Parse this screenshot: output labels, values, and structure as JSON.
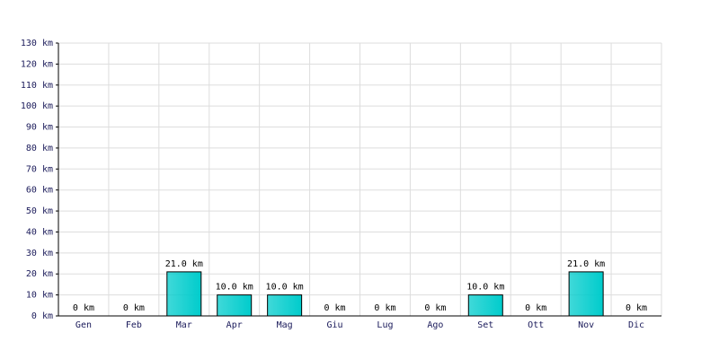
{
  "chart_data": {
    "type": "bar",
    "categories": [
      "Gen",
      "Feb",
      "Mar",
      "Apr",
      "Mag",
      "Giu",
      "Lug",
      "Ago",
      "Set",
      "Ott",
      "Nov",
      "Dic"
    ],
    "values": [
      0,
      0,
      21,
      10,
      10,
      0,
      0,
      0,
      10,
      0,
      21,
      0
    ],
    "value_labels": [
      "0 km",
      "0 km",
      "21.0 km",
      "10.0 km",
      "10.0 km",
      "0 km",
      "0 km",
      "0 km",
      "10.0 km",
      "0 km",
      "21.0 km",
      "0 km"
    ],
    "color": "#00cccc",
    "ylim": [
      0,
      130
    ],
    "yticks": [
      {
        "value": 0,
        "label": "0 km"
      },
      {
        "value": 10,
        "label": "10 km"
      },
      {
        "value": 20,
        "label": "20 km"
      },
      {
        "value": 30,
        "label": "30 km"
      },
      {
        "value": 40,
        "label": "40 km"
      },
      {
        "value": 50,
        "label": "50 km"
      },
      {
        "value": 60,
        "label": "60 km"
      },
      {
        "value": 70,
        "label": "70 km"
      },
      {
        "value": 80,
        "label": "80 km"
      },
      {
        "value": 90,
        "label": "90 km"
      },
      {
        "value": 100,
        "label": "100 km"
      },
      {
        "value": 110,
        "label": "110 km"
      },
      {
        "value": 120,
        "label": "120 km"
      },
      {
        "value": 130,
        "label": "130 km"
      }
    ],
    "grid": true
  }
}
